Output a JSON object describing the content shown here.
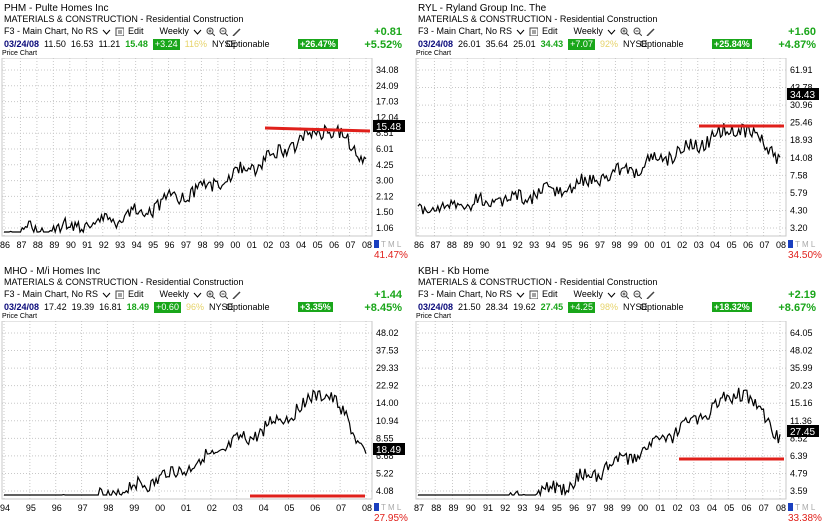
{
  "colors": {
    "green": "#19a61a",
    "red": "#e0201b",
    "line": "#000000",
    "grid": "#c8c8c8"
  },
  "panels": [
    {
      "ticker_title": "PHM  -  Pulte Homes Inc",
      "sector": "MATERIALS & CONSTRUCTION - Residential Construction",
      "chart_select": "F3 - Main Chart, No RS",
      "edit": "Edit",
      "period": "Weekly",
      "date": "03/24/08",
      "open": "11.50",
      "high": "16.53",
      "low": "11.21",
      "close": "15.48",
      "change_box": "+3.24",
      "rs": "116%",
      "exch": "NYSE",
      "optionable": "Optionable",
      "ratio": "+26.47%",
      "chg_abs": "+0.81",
      "chg_pct": "+5.52%",
      "price_chart": "Price Chart",
      "yticks": [
        "34.08",
        "24.09",
        "17.03",
        "12.04",
        "8.51",
        "6.01",
        "4.25",
        "3.00",
        "2.12",
        "1.50",
        "1.06"
      ],
      "last": "15.48",
      "xticks": [
        "86",
        "87",
        "88",
        "89",
        "90",
        "91",
        "92",
        "93",
        "94",
        "95",
        "96",
        "97",
        "98",
        "99",
        "00",
        "01",
        "02",
        "03",
        "04",
        "05",
        "06",
        "07",
        "08"
      ],
      "tml": "T M L",
      "pct_down": "41.47%"
    },
    {
      "ticker_title": "RYL  -  Ryland Group Inc. The",
      "sector": "MATERIALS & CONSTRUCTION - Residential Construction",
      "chart_select": "F3 - Main Chart, No RS",
      "edit": "Edit",
      "period": "Weekly",
      "date": "03/24/08",
      "open": "26.01",
      "high": "35.64",
      "low": "25.01",
      "close": "34.43",
      "change_box": "+7.07",
      "rs": "92%",
      "exch": "NYSE",
      "optionable": "Optionable",
      "ratio": "+25.84%",
      "chg_abs": "+1.60",
      "chg_pct": "+4.87%",
      "price_chart": "Price Chart",
      "yticks": [
        "61.91",
        "43.78",
        "30.96",
        "25.46",
        "18.93",
        "14.08",
        "7.58",
        "5.79",
        "4.30",
        "3.20"
      ],
      "last": "34.43",
      "xticks": [
        "86",
        "87",
        "88",
        "89",
        "90",
        "91",
        "92",
        "93",
        "94",
        "95",
        "96",
        "97",
        "98",
        "99",
        "00",
        "01",
        "02",
        "03",
        "04",
        "05",
        "06",
        "07",
        "08"
      ],
      "tml": "T M L",
      "pct_down": "34.50%"
    },
    {
      "ticker_title": "MHO  -  M/i Homes Inc",
      "sector": "MATERIALS & CONSTRUCTION - Residential Construction",
      "chart_select": "F3 - Main Chart, No RS",
      "edit": "Edit",
      "period": "Weekly",
      "date": "03/24/08",
      "open": "17.42",
      "high": "19.39",
      "low": "16.81",
      "close": "18.49",
      "change_box": "+0.60",
      "rs": "96%",
      "exch": "NYSE",
      "optionable": "Optionable",
      "ratio": "+3.35%",
      "chg_abs": "+1.44",
      "chg_pct": "+8.45%",
      "price_chart": "Price Chart",
      "yticks": [
        "48.02",
        "37.53",
        "29.33",
        "22.92",
        "14.00",
        "10.94",
        "8.55",
        "6.68",
        "5.22",
        "4.08"
      ],
      "last": "18.49",
      "xticks": [
        "94",
        "95",
        "96",
        "97",
        "98",
        "99",
        "00",
        "01",
        "02",
        "03",
        "04",
        "05",
        "06",
        "07",
        "08"
      ],
      "tml": "T M L",
      "pct_down": "27.95%"
    },
    {
      "ticker_title": "KBH  -  Kb Home",
      "sector": "MATERIALS & CONSTRUCTION - Residential Construction",
      "chart_select": "F3 - Main Chart, No RS",
      "edit": "Edit",
      "period": "Weekly",
      "date": "03/24/08",
      "open": "21.50",
      "high": "28.34",
      "low": "19.62",
      "close": "27.45",
      "change_box": "+4.25",
      "rs": "98%",
      "exch": "NYSE",
      "optionable": "Optionable",
      "ratio": "+18.32%",
      "chg_abs": "+2.19",
      "chg_pct": "+8.67%",
      "price_chart": "Price Chart",
      "yticks": [
        "64.05",
        "48.02",
        "35.99",
        "20.23",
        "15.16",
        "11.36",
        "8.52",
        "6.39",
        "4.79",
        "3.59"
      ],
      "last": "27.45",
      "xticks": [
        "87",
        "88",
        "89",
        "90",
        "91",
        "92",
        "93",
        "94",
        "95",
        "96",
        "97",
        "98",
        "99",
        "00",
        "01",
        "02",
        "03",
        "04",
        "05",
        "06",
        "07",
        "08"
      ],
      "tml": "T M L",
      "pct_down": "33.38%"
    }
  ]
}
